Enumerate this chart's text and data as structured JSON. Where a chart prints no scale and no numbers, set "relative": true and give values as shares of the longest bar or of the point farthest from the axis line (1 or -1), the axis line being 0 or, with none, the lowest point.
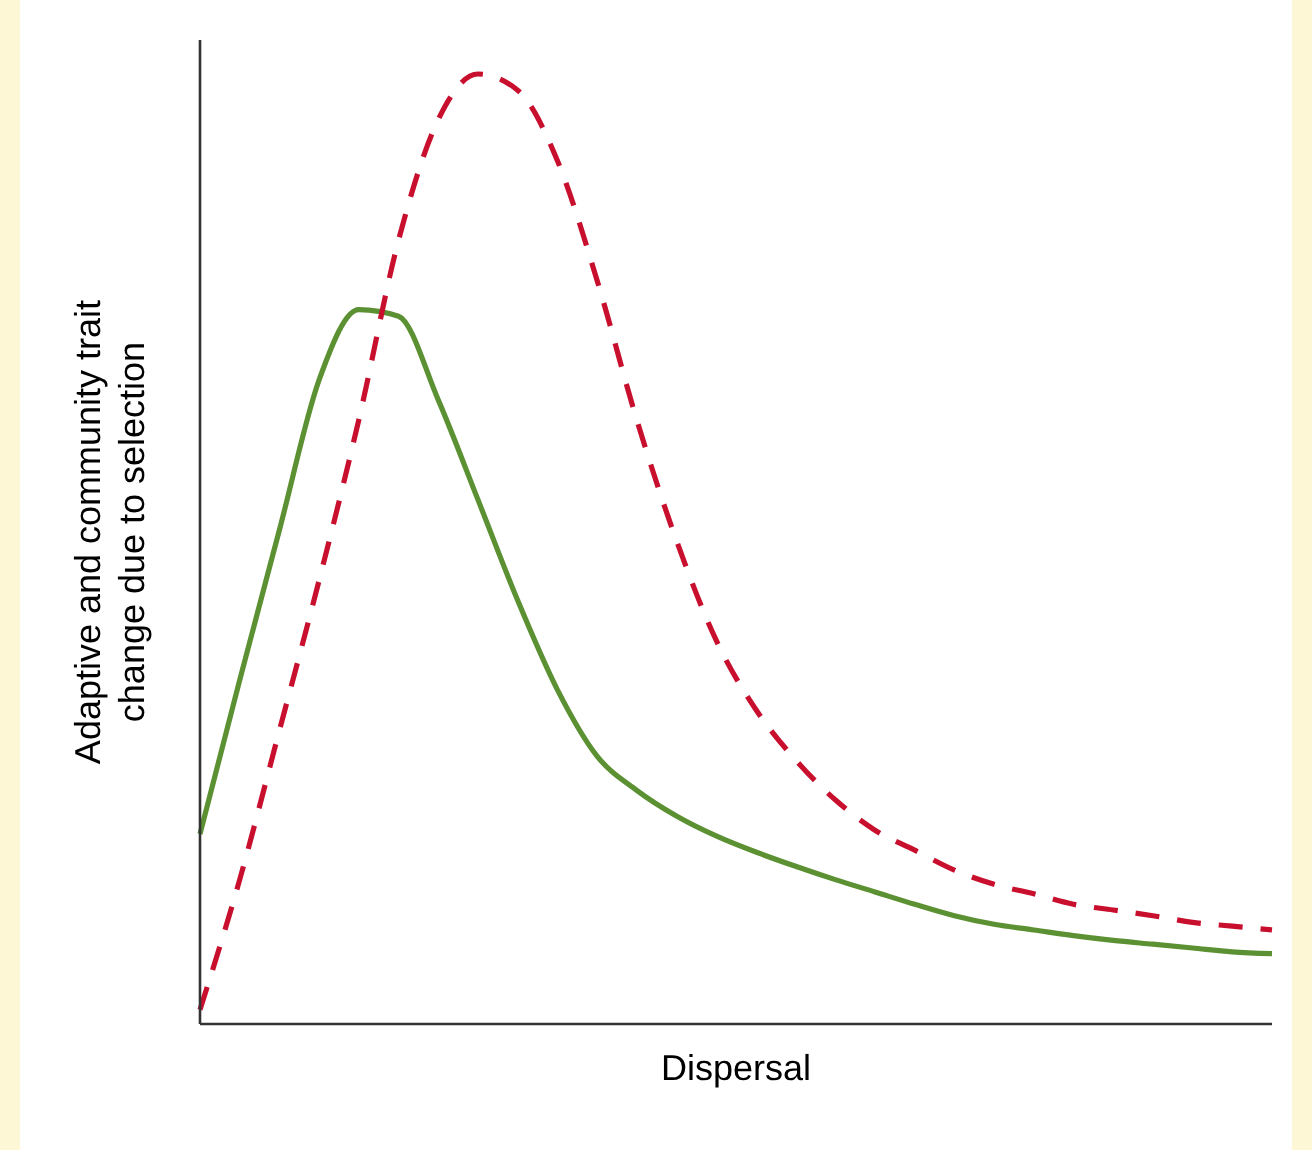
{
  "chart_data": {
    "type": "line",
    "relative": true,
    "xlabel": "Dispersal",
    "ylabel": "Adaptive and community trait\nchange due to selection",
    "categories": [
      null,
      null,
      null,
      null,
      null,
      null,
      null,
      null,
      null,
      null,
      null,
      null,
      null,
      null,
      null,
      null,
      null,
      null,
      null,
      null,
      null,
      null,
      null,
      null,
      null,
      null,
      null,
      null
    ],
    "series": [
      {
        "color": "#5b9132",
        "line_style": "solid",
        "values": [
          0.2,
          0.362,
          0.52,
          0.678,
          0.752,
          0.745,
          0.657,
          0.552,
          0.446,
          0.352,
          0.282,
          0.246,
          0.219,
          0.198,
          0.181,
          0.166,
          0.152,
          0.139,
          0.126,
          0.114,
          0.105,
          0.099,
          0.093,
          0.088,
          0.084,
          0.08,
          0.076,
          0.074
        ]
      },
      {
        "color": "#c8102e",
        "line_style": "dashed",
        "values": [
          0.015,
          0.152,
          0.309,
          0.467,
          0.636,
          0.825,
          0.952,
          1,
          0.983,
          0.909,
          0.783,
          0.636,
          0.509,
          0.404,
          0.331,
          0.278,
          0.236,
          0.204,
          0.183,
          0.162,
          0.147,
          0.137,
          0.126,
          0.12,
          0.114,
          0.107,
          0.103,
          0.099
        ]
      }
    ]
  }
}
